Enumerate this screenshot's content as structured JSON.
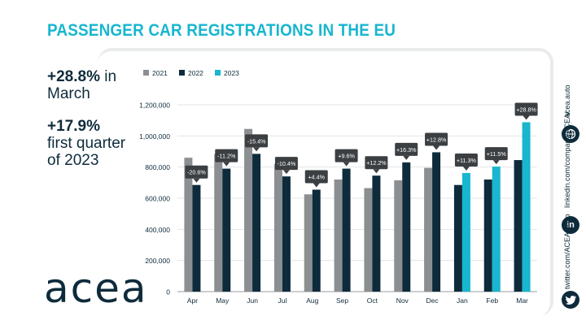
{
  "title": "PASSENGER CAR REGISTRATIONS IN THE EU",
  "stats": {
    "march_value": "+28.8%",
    "march_label_inline": " in",
    "march_label": "March",
    "q1_value": "+17.9%",
    "q1_label_line1": "first quarter",
    "q1_label_line2": "of 2023"
  },
  "logo_text": "acea",
  "social": {
    "website": "acea.auto",
    "linkedin": "linkedin.com/company/ACEA/",
    "twitter": "twitter.com/ACEA_auto",
    "website_icon": "globe-icon",
    "linkedin_icon": "linkedin-icon",
    "twitter_icon": "twitter-icon",
    "linkedin_glyph": "in"
  },
  "colors": {
    "title": "#18b6cf",
    "y2021": "#8c8f91",
    "y2022": "#0e2b3b",
    "y2023": "#18b6cf",
    "callout": "#3b3f42"
  },
  "chart_data": {
    "type": "bar",
    "legend": [
      {
        "name": "2021",
        "color": "#8c8f91"
      },
      {
        "name": "2022",
        "color": "#0e2b3b"
      },
      {
        "name": "2023",
        "color": "#18b6cf"
      }
    ],
    "legend_position": "top-left",
    "categories": [
      "Apr",
      "May",
      "Jun",
      "Jul",
      "Aug",
      "Sep",
      "Oct",
      "Nov",
      "Dec",
      "Jan",
      "Feb",
      "Mar"
    ],
    "series": [
      {
        "name": "2021",
        "values": [
          860000,
          885000,
          1045000,
          820000,
          625000,
          720000,
          665000,
          715000,
          795000,
          null,
          null,
          null
        ]
      },
      {
        "name": "2022",
        "values": [
          685000,
          790000,
          885000,
          740000,
          655000,
          790000,
          745000,
          830000,
          895000,
          685000,
          720000,
          845000
        ]
      },
      {
        "name": "2023",
        "values": [
          null,
          null,
          null,
          null,
          null,
          null,
          null,
          null,
          null,
          762000,
          803000,
          1088000
        ]
      }
    ],
    "annotations": [
      "-20.6%",
      "-11.2%",
      "-15.4%",
      "-10.4%",
      "+4.4%",
      "+9.6%",
      "+12.2%",
      "+16.3%",
      "+12.8%",
      "+11.3%",
      "+11.5%",
      "+28.8%"
    ],
    "y_ticks": [
      "0",
      "200,000",
      "400,000",
      "600,000",
      "800,000",
      "1,000,000",
      "1,200,000"
    ],
    "ylim": [
      0,
      1200000
    ],
    "grid": true,
    "title": "",
    "xlabel": "",
    "ylabel": ""
  }
}
